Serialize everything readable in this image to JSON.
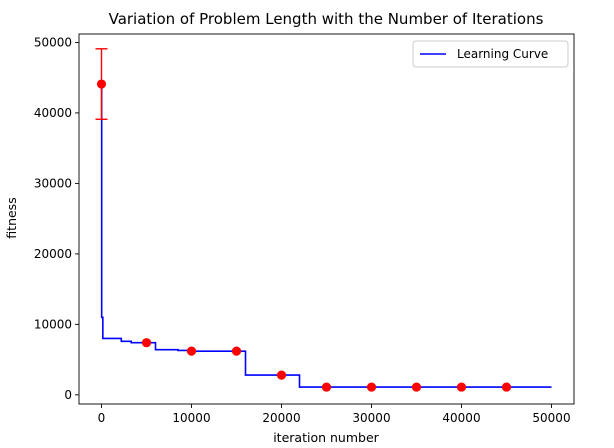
{
  "chart_data": {
    "type": "line",
    "title": "Variation of Problem Length with the Number of Iterations",
    "xlabel": "iteration number",
    "ylabel": "fitness",
    "xlim": [
      -2500,
      52500
    ],
    "ylim": [
      -1300,
      51200
    ],
    "x_ticks": [
      0,
      10000,
      20000,
      30000,
      40000,
      50000
    ],
    "y_ticks": [
      0,
      10000,
      20000,
      30000,
      40000,
      50000
    ],
    "grid": false,
    "legend_position": "top-right",
    "series": [
      {
        "name": "Learning Curve",
        "color": "#0000ff",
        "step_points": [
          [
            0,
            44000
          ],
          [
            20,
            11000
          ],
          [
            150,
            8000
          ],
          [
            2200,
            7600
          ],
          [
            3300,
            7400
          ],
          [
            5000,
            7400
          ],
          [
            6000,
            6400
          ],
          [
            8500,
            6300
          ],
          [
            10000,
            6200
          ],
          [
            16000,
            2800
          ],
          [
            22000,
            1100
          ],
          [
            50000,
            1100
          ]
        ]
      }
    ],
    "markers": {
      "color": "#ff0000",
      "points": [
        [
          0,
          44100
        ],
        [
          5000,
          7400
        ],
        [
          10000,
          6200
        ],
        [
          15000,
          6200
        ],
        [
          20000,
          2800
        ],
        [
          25000,
          1100
        ],
        [
          30000,
          1100
        ],
        [
          35000,
          1100
        ],
        [
          40000,
          1100
        ],
        [
          45000,
          1100
        ]
      ],
      "error_bars": [
        {
          "x": 0,
          "y": 44100,
          "low": 39100,
          "high": 49100
        }
      ]
    }
  }
}
